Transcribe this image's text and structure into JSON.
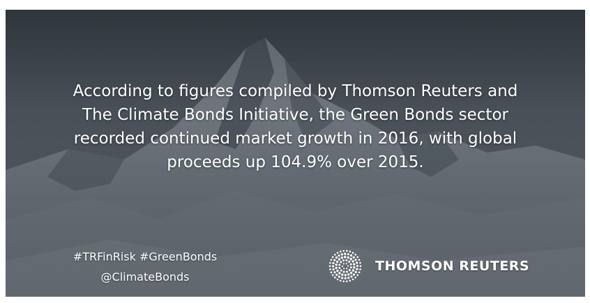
{
  "headline": {
    "lines": [
      "According to figures compiled by Thomson Reuters and",
      "The Climate Bonds Initiative, the Green Bonds sector",
      "recorded continued market growth in 2016, with global",
      "proceeds up 104.9% over 2015."
    ]
  },
  "footer": {
    "hashtags": "#TRFinRisk #GreenBonds",
    "handle": "@ClimateBonds",
    "brand_name": "THOMSON REUTERS",
    "brand_logo_icon": "thomson-reuters-dot-sphere-logo"
  },
  "background": {
    "subject": "snowy-mountain-peak",
    "overlay_color": "#3f4853"
  }
}
